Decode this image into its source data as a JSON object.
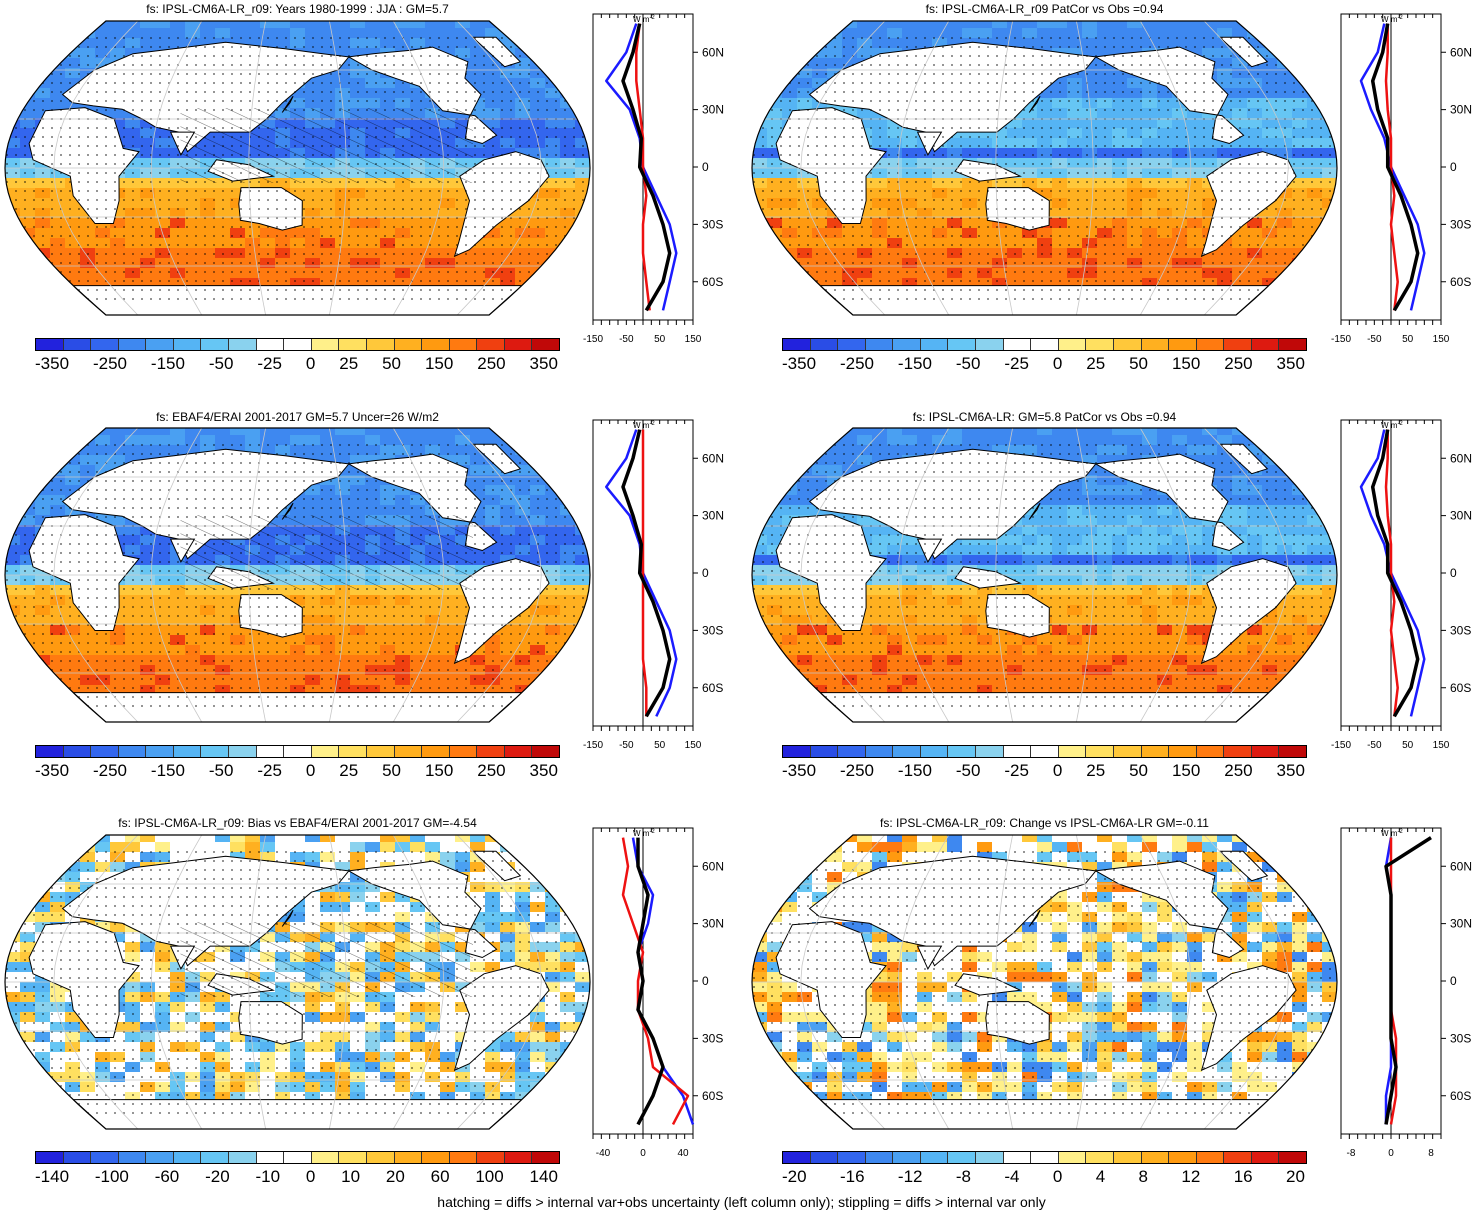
{
  "footnote": "hatching = diffs > internal var+obs uncertainty (left column only); stippling = diffs > internal var only",
  "colors": {
    "land": "#ffffff",
    "series_blue": "#1b1bff",
    "series_red": "#ee1111",
    "series_black": "#000000",
    "grid": "#c8c8c8"
  },
  "mean_palette": [
    "#2222dd",
    "#2a4de6",
    "#3366ee",
    "#3e88f0",
    "#4aa0f2",
    "#55b4f4",
    "#66c6f4",
    "#8ad2ee",
    "#ffffff",
    "#ffffff",
    "#fff08a",
    "#ffe060",
    "#ffc83a",
    "#ffb020",
    "#ff9a10",
    "#ff7a10",
    "#f04010",
    "#dd1a10",
    "#c00808"
  ],
  "diff_palette": [
    "#2222dd",
    "#2a4de6",
    "#3366ee",
    "#3e88f0",
    "#4aa0f2",
    "#55b4f4",
    "#66c6f4",
    "#8ad2ee",
    "#ffffff",
    "#ffffff",
    "#fff08a",
    "#ffe060",
    "#ffc83a",
    "#ffb020",
    "#ff9a10",
    "#ff7a10",
    "#f04010",
    "#dd1a10",
    "#c00808"
  ],
  "panels": [
    {
      "title": "fs: IPSL-CM6A-LR_r09: Years 1980-1999 : JJA : GM=5.7",
      "cbar_labels": [
        "-350",
        "-250",
        "-150",
        "-50",
        "-25",
        "0",
        "25",
        "50",
        "150",
        "250",
        "350"
      ],
      "zonal_ticks": [
        "-150",
        "-50",
        "50",
        "150"
      ],
      "zonal_lats": [
        "60N",
        "30N",
        "0",
        "30S",
        "60S"
      ],
      "zonal_unit": "W m",
      "zonal_unit_sup": "-2",
      "hatched": true
    },
    {
      "title": "fs: IPSL-CM6A-LR_r09 PatCor vs Obs =0.94",
      "cbar_labels": [
        "-350",
        "-250",
        "-150",
        "-50",
        "-25",
        "0",
        "25",
        "50",
        "150",
        "250",
        "350"
      ],
      "zonal_ticks": [
        "-150",
        "-50",
        "50",
        "150"
      ],
      "zonal_lats": [
        "60N",
        "30N",
        "0",
        "30S",
        "60S"
      ],
      "zonal_unit": "W m",
      "zonal_unit_sup": "-2",
      "hatched": false
    },
    {
      "title": "fs: EBAF4/ERAI 2001-2017 GM=5.7 Uncer=26 W/m2",
      "cbar_labels": [
        "-350",
        "-250",
        "-150",
        "-50",
        "-25",
        "0",
        "25",
        "50",
        "150",
        "250",
        "350"
      ],
      "zonal_ticks": [
        "-150",
        "-50",
        "50",
        "150"
      ],
      "zonal_lats": [
        "60N",
        "30N",
        "0",
        "30S",
        "60S"
      ],
      "zonal_unit": "W m",
      "zonal_unit_sup": "-2",
      "hatched": true
    },
    {
      "title": "fs: IPSL-CM6A-LR: GM=5.8 PatCor vs Obs =0.94",
      "cbar_labels": [
        "-350",
        "-250",
        "-150",
        "-50",
        "-25",
        "0",
        "25",
        "50",
        "150",
        "250",
        "350"
      ],
      "zonal_ticks": [
        "-150",
        "-50",
        "50",
        "150"
      ],
      "zonal_lats": [
        "60N",
        "30N",
        "0",
        "30S",
        "60S"
      ],
      "zonal_unit": "W m",
      "zonal_unit_sup": "-2",
      "hatched": false
    },
    {
      "title": "fs: IPSL-CM6A-LR_r09: Bias vs EBAF4/ERAI 2001-2017 GM=-4.54",
      "cbar_labels": [
        "-140",
        "-100",
        "-60",
        "-20",
        "-10",
        "0",
        "10",
        "20",
        "60",
        "100",
        "140"
      ],
      "zonal_ticks": [
        "-40",
        "0",
        "40"
      ],
      "zonal_lats": [
        "60N",
        "30N",
        "0",
        "30S",
        "60S"
      ],
      "zonal_unit": "W m",
      "zonal_unit_sup": "-2",
      "hatched": true
    },
    {
      "title": "fs: IPSL-CM6A-LR_r09: Change vs IPSL-CM6A-LR GM=-0.11",
      "cbar_labels": [
        "-20",
        "-16",
        "-12",
        "-8",
        "-4",
        "0",
        "4",
        "8",
        "12",
        "16",
        "20"
      ],
      "zonal_ticks": [
        "-8",
        "0",
        "8"
      ],
      "zonal_lats": [
        "60N",
        "30N",
        "0",
        "30S",
        "60S"
      ],
      "zonal_unit": "W m",
      "zonal_unit_sup": "-2",
      "hatched": false
    }
  ],
  "chart_data": [
    {
      "type": "heatmap",
      "title": "fs: IPSL-CM6A-LR_r09: Years 1980-1999 : JJA : GM=5.7",
      "levels": [
        -350,
        -250,
        -150,
        -50,
        -25,
        0,
        25,
        50,
        150,
        250,
        350
      ],
      "zonal_xlim": [
        -150,
        150
      ],
      "lat": [
        75,
        60,
        45,
        30,
        15,
        0,
        -15,
        -30,
        -45,
        -60,
        -75
      ],
      "series": [
        {
          "color": "blue",
          "values": [
            -20,
            -50,
            -110,
            -40,
            -10,
            0,
            40,
            80,
            100,
            80,
            60
          ]
        },
        {
          "color": "red",
          "values": [
            -10,
            -20,
            -20,
            -10,
            0,
            0,
            10,
            0,
            0,
            10,
            20
          ]
        },
        {
          "color": "black",
          "values": [
            -10,
            -30,
            -60,
            -30,
            -5,
            -10,
            30,
            60,
            80,
            60,
            10
          ]
        }
      ]
    },
    {
      "type": "heatmap",
      "title": "fs: IPSL-CM6A-LR_r09 PatCor vs Obs =0.94",
      "levels": [
        -350,
        -250,
        -150,
        -50,
        -25,
        0,
        25,
        50,
        150,
        250,
        350
      ],
      "zonal_xlim": [
        -150,
        150
      ],
      "lat": [
        75,
        60,
        45,
        30,
        15,
        0,
        -15,
        -30,
        -45,
        -60,
        -75
      ],
      "series": [
        {
          "color": "blue",
          "values": [
            -20,
            -40,
            -90,
            -60,
            -20,
            0,
            40,
            80,
            100,
            80,
            60
          ]
        },
        {
          "color": "red",
          "values": [
            -10,
            -10,
            -15,
            -10,
            0,
            0,
            10,
            0,
            10,
            20,
            10
          ]
        },
        {
          "color": "black",
          "values": [
            -10,
            -25,
            -55,
            -40,
            -10,
            -10,
            30,
            60,
            80,
            60,
            10
          ]
        }
      ]
    },
    {
      "type": "heatmap",
      "title": "fs: EBAF4/ERAI 2001-2017 GM=5.7 Uncer=26 W/m2",
      "levels": [
        -350,
        -250,
        -150,
        -50,
        -25,
        0,
        25,
        50,
        150,
        250,
        350
      ],
      "zonal_xlim": [
        -150,
        150
      ],
      "lat": [
        75,
        60,
        45,
        30,
        15,
        0,
        -15,
        -30,
        -45,
        -60,
        -75
      ],
      "series": [
        {
          "color": "blue",
          "values": [
            -20,
            -50,
            -110,
            -40,
            -10,
            0,
            40,
            80,
            100,
            80,
            40
          ]
        },
        {
          "color": "red",
          "values": [
            0,
            0,
            0,
            0,
            0,
            0,
            0,
            0,
            0,
            10,
            10
          ]
        },
        {
          "color": "black",
          "values": [
            -10,
            -30,
            -60,
            -30,
            -5,
            -10,
            30,
            60,
            80,
            60,
            10
          ]
        }
      ]
    },
    {
      "type": "heatmap",
      "title": "fs: IPSL-CM6A-LR: GM=5.8 PatCor vs Obs =0.94",
      "levels": [
        -350,
        -250,
        -150,
        -50,
        -25,
        0,
        25,
        50,
        150,
        250,
        350
      ],
      "zonal_xlim": [
        -150,
        150
      ],
      "lat": [
        75,
        60,
        45,
        30,
        15,
        0,
        -15,
        -30,
        -45,
        -60,
        -75
      ],
      "series": [
        {
          "color": "blue",
          "values": [
            -20,
            -40,
            -90,
            -60,
            -20,
            0,
            40,
            80,
            100,
            80,
            60
          ]
        },
        {
          "color": "red",
          "values": [
            -10,
            -10,
            -15,
            -10,
            0,
            0,
            10,
            0,
            10,
            20,
            10
          ]
        },
        {
          "color": "black",
          "values": [
            -10,
            -25,
            -55,
            -40,
            -10,
            -10,
            30,
            60,
            80,
            60,
            10
          ]
        }
      ]
    },
    {
      "type": "heatmap",
      "title": "fs: IPSL-CM6A-LR_r09: Bias vs EBAF4/ERAI 2001-2017 GM=-4.54",
      "levels": [
        -140,
        -100,
        -60,
        -20,
        -10,
        0,
        10,
        20,
        60,
        100,
        140
      ],
      "zonal_xlim": [
        -50,
        50
      ],
      "lat": [
        75,
        60,
        45,
        30,
        15,
        0,
        -15,
        -30,
        -45,
        -60,
        -75
      ],
      "series": [
        {
          "color": "blue",
          "values": [
            -10,
            -5,
            10,
            5,
            -5,
            0,
            -5,
            10,
            20,
            40,
            50
          ]
        },
        {
          "color": "red",
          "values": [
            -20,
            -15,
            -20,
            -10,
            0,
            -5,
            -5,
            5,
            10,
            45,
            30
          ]
        },
        {
          "color": "black",
          "values": [
            -5,
            -5,
            5,
            0,
            -5,
            0,
            -5,
            10,
            20,
            10,
            -5
          ]
        }
      ]
    },
    {
      "type": "heatmap",
      "title": "fs: IPSL-CM6A-LR_r09: Change vs IPSL-CM6A-LR GM=-0.11",
      "levels": [
        -20,
        -16,
        -12,
        -8,
        -4,
        0,
        4,
        8,
        12,
        16,
        20
      ],
      "zonal_xlim": [
        -10,
        10
      ],
      "lat": [
        75,
        60,
        45,
        30,
        15,
        0,
        -15,
        -30,
        -45,
        -60,
        -75
      ],
      "series": [
        {
          "color": "blue",
          "values": [
            0,
            -1,
            0,
            0,
            0,
            0,
            0,
            0,
            0,
            -1,
            -1
          ]
        },
        {
          "color": "red",
          "values": [
            0,
            0,
            0,
            0,
            0,
            0,
            0,
            1,
            1,
            1,
            0
          ]
        },
        {
          "color": "black",
          "values": [
            8,
            -1,
            0,
            0,
            0,
            0,
            0,
            0,
            1,
            0,
            -1
          ]
        }
      ]
    }
  ]
}
